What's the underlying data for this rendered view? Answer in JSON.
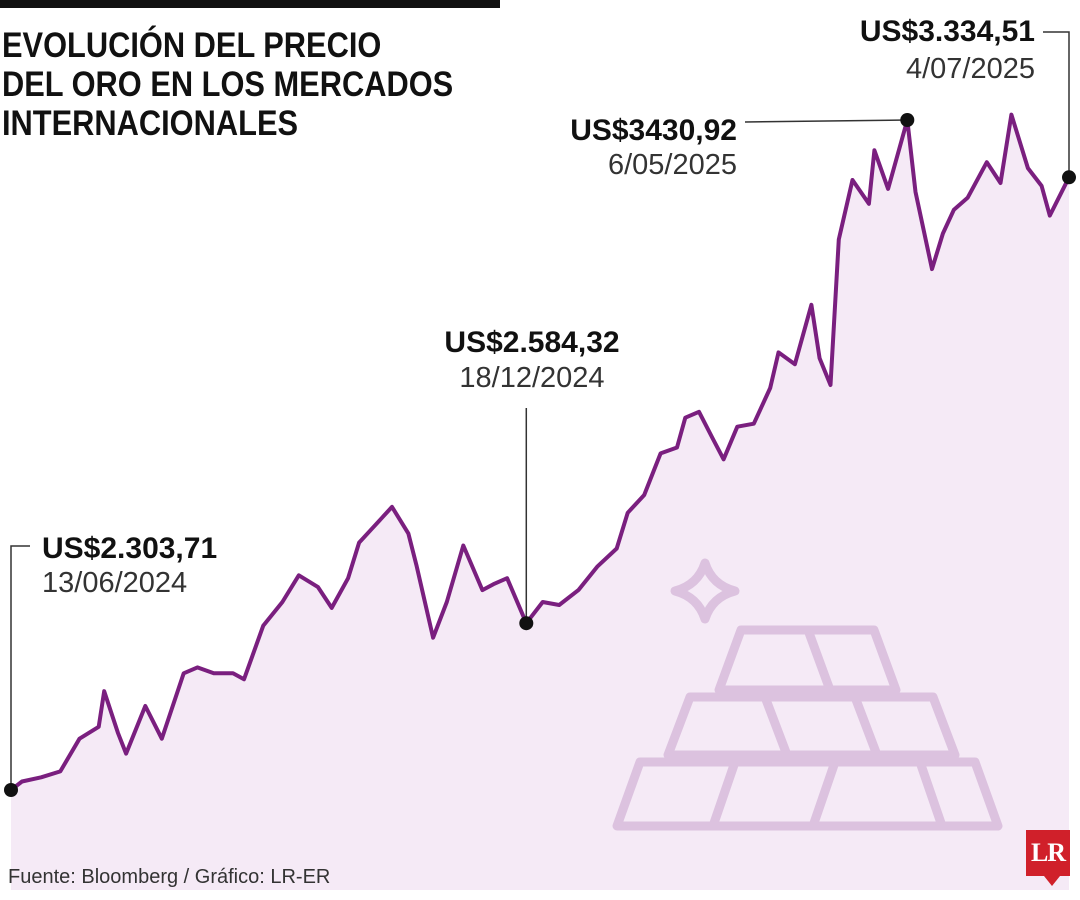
{
  "header": {
    "title_lines": [
      "EVOLUCIÓN DEL PRECIO",
      "DEL ORO EN LOS MERCADOS",
      "INTERNACIONALES"
    ]
  },
  "footer": {
    "source": "Fuente: Bloomberg / Gráfico: LR-ER",
    "logo": "LR"
  },
  "colors": {
    "line": "#7a1f7f",
    "area": "#f5eaf6",
    "icon": "#dcc2df",
    "marker": "#111111",
    "logo": "#d0202a"
  },
  "icon": "gold-bars-icon",
  "chart_data": {
    "type": "line",
    "title": "EVOLUCIÓN DEL PRECIO DEL ORO EN LOS MERCADOS INTERNACIONALES",
    "xlabel": "",
    "ylabel": "",
    "xlim": [
      "13/06/2024",
      "4/07/2025"
    ],
    "ylim": [
      2250,
      3500
    ],
    "grid": false,
    "legend": "none",
    "series": [
      {
        "x": [
          "13/06/2024",
          "17/06/2024",
          "24/06/2024",
          "01/07/2024",
          "08/07/2024",
          "15/07/2024",
          "17/07/2024",
          "22/07/2024",
          "25/07/2024",
          "01/08/2024",
          "07/08/2024",
          "15/08/2024",
          "20/08/2024",
          "26/08/2024",
          "02/09/2024",
          "06/09/2024",
          "13/09/2024",
          "20/09/2024",
          "26/09/2024",
          "03/10/2024",
          "08/10/2024",
          "14/10/2024",
          "18/10/2024",
          "22/10/2024",
          "30/10/2024",
          "05/11/2024",
          "08/11/2024",
          "14/11/2024",
          "19/11/2024",
          "25/11/2024",
          "02/12/2024",
          "06/12/2024",
          "11/12/2024",
          "18/12/2024",
          "24/12/2024",
          "30/12/2024",
          "06/01/2025",
          "13/01/2025",
          "20/01/2025",
          "24/01/2025",
          "30/01/2025",
          "05/02/2025",
          "11/02/2025",
          "14/02/2025",
          "19/02/2025",
          "24/02/2025",
          "28/02/2025",
          "05/03/2025",
          "11/03/2025",
          "17/03/2025",
          "20/03/2025",
          "26/03/2025",
          "01/04/2025",
          "04/04/2025",
          "08/04/2025",
          "11/04/2025",
          "16/04/2025",
          "22/04/2025",
          "24/04/2025",
          "29/04/2025",
          "06/05/2025",
          "09/05/2025",
          "15/05/2025",
          "19/05/2025",
          "23/05/2025",
          "28/05/2025",
          "04/06/2025",
          "09/06/2025",
          "13/06/2025",
          "19/06/2025",
          "24/06/2025",
          "27/06/2025",
          "04/07/2025"
        ],
        "y": [
          2303.71,
          2318,
          2325,
          2335,
          2390,
          2410,
          2470,
          2400,
          2365,
          2445,
          2390,
          2500,
          2510,
          2500,
          2500,
          2490,
          2580,
          2620,
          2665,
          2645,
          2610,
          2660,
          2720,
          2740,
          2780,
          2735,
          2680,
          2560,
          2620,
          2715,
          2640,
          2650,
          2660,
          2584.32,
          2620,
          2615,
          2640,
          2680,
          2710,
          2770,
          2800,
          2870,
          2880,
          2930,
          2940,
          2895,
          2860,
          2915,
          2920,
          2980,
          3040,
          3020,
          3120,
          3030,
          2985,
          3230,
          3330,
          3290,
          3380,
          3315,
          3430.92,
          3310,
          3180,
          3240,
          3280,
          3300,
          3360,
          3325,
          3440,
          3350,
          3320,
          3270,
          3334.51
        ]
      }
    ],
    "annotations": [
      {
        "value": "US$2.303,71",
        "date": "13/06/2024",
        "x": "13/06/2024",
        "y": 2303.71
      },
      {
        "value": "US$2.584,32",
        "date": "18/12/2024",
        "x": "18/12/2024",
        "y": 2584.32
      },
      {
        "value": "US$3430,92",
        "date": "6/05/2025",
        "x": "06/05/2025",
        "y": 3430.92
      },
      {
        "value": "US$3.334,51",
        "date": "4/07/2025",
        "x": "04/07/2025",
        "y": 3334.51
      }
    ]
  }
}
